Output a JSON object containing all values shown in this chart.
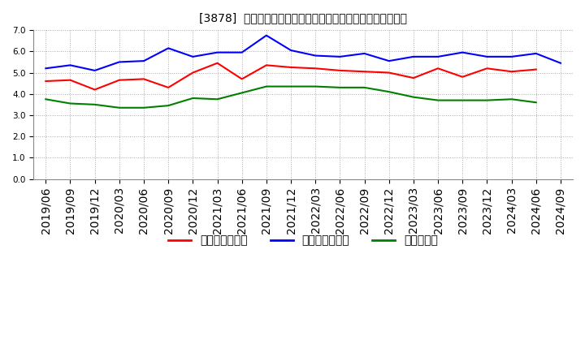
{
  "title": "[3878]  売上債権回転率、買入債務回転率、在庫回転率の推移",
  "ylim": [
    0.0,
    7.0
  ],
  "yticks": [
    0.0,
    1.0,
    2.0,
    3.0,
    4.0,
    5.0,
    6.0,
    7.0
  ],
  "x_labels": [
    "2019/06",
    "2019/09",
    "2019/12",
    "2020/03",
    "2020/06",
    "2020/09",
    "2020/12",
    "2021/03",
    "2021/06",
    "2021/09",
    "2021/12",
    "2022/03",
    "2022/06",
    "2022/09",
    "2022/12",
    "2023/03",
    "2023/06",
    "2023/09",
    "2023/12",
    "2024/03",
    "2024/06",
    "2024/09"
  ],
  "series": {
    "売上債権回転率": {
      "color": "#ff0000",
      "values": [
        4.6,
        4.65,
        4.2,
        4.65,
        4.7,
        4.3,
        5.0,
        5.45,
        4.7,
        5.35,
        5.25,
        5.2,
        5.1,
        5.05,
        5.0,
        4.75,
        5.2,
        4.8,
        5.2,
        5.05,
        5.15,
        null
      ]
    },
    "買入債務回転率": {
      "color": "#0000ff",
      "values": [
        5.2,
        5.35,
        5.1,
        5.5,
        5.55,
        6.15,
        5.75,
        5.95,
        5.95,
        6.75,
        6.05,
        5.8,
        5.75,
        5.9,
        5.55,
        5.75,
        5.75,
        5.95,
        5.75,
        5.75,
        5.9,
        5.45
      ]
    },
    "在庫回転率": {
      "color": "#008000",
      "values": [
        3.75,
        3.55,
        3.5,
        3.35,
        3.35,
        3.45,
        3.8,
        3.75,
        4.05,
        4.35,
        4.35,
        4.35,
        4.3,
        4.3,
        4.1,
        3.85,
        3.7,
        3.7,
        3.7,
        3.75,
        3.6,
        null
      ]
    }
  },
  "legend_labels": [
    "売上債権回転率",
    "買入債務回転率",
    "在庫回転率"
  ],
  "legend_colors": [
    "#ff0000",
    "#0000ff",
    "#008000"
  ],
  "background_color": "#ffffff",
  "grid_color": "#aaaaaa",
  "title_fontsize": 11,
  "tick_fontsize": 7.5
}
